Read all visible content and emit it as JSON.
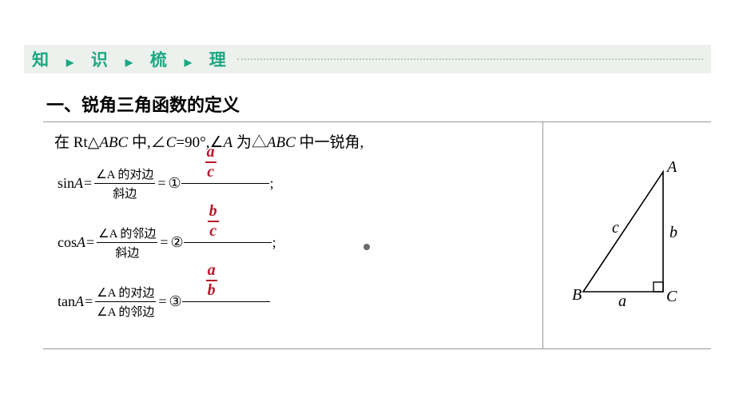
{
  "header": {
    "chars": [
      "知",
      "识",
      "梳",
      "理"
    ],
    "sep_glyph": "▶",
    "color": "#1aa882",
    "bg": "#ecf1ee"
  },
  "section_title": "一、锐角三角函数的定义",
  "body_intro": {
    "prefix": "在 Rt△",
    "tri": "ABC",
    "mid1": " 中,∠",
    "cvar": "C",
    "eq90": "=90°,∠",
    "avar": "A",
    "mid2": " 为△",
    "tri2": "ABC",
    "suffix": " 中一锐角,"
  },
  "formulas": [
    {
      "func": "sin",
      "arg": "A",
      "frac_num": "∠A 的对边",
      "frac_den": "斜边",
      "circ": "①",
      "ans_num": "a",
      "ans_den": "c",
      "trailing": ";"
    },
    {
      "func": "cos",
      "arg": "A",
      "frac_num": "∠A 的邻边",
      "frac_den": "斜边",
      "circ": "②",
      "ans_num": "b",
      "ans_den": "c",
      "trailing": ";"
    },
    {
      "func": "tan",
      "arg": "A",
      "frac_num": "∠A 的对边",
      "frac_den": "∠A 的邻边",
      "circ": "③",
      "ans_num": "a",
      "ans_den": "b",
      "trailing": ""
    }
  ],
  "triangle": {
    "labels": {
      "A": "A",
      "B": "B",
      "C": "C",
      "a": "a",
      "b": "b",
      "c": "c"
    },
    "stroke": "#000000",
    "label_font": "italic 20px 'Times New Roman'"
  }
}
